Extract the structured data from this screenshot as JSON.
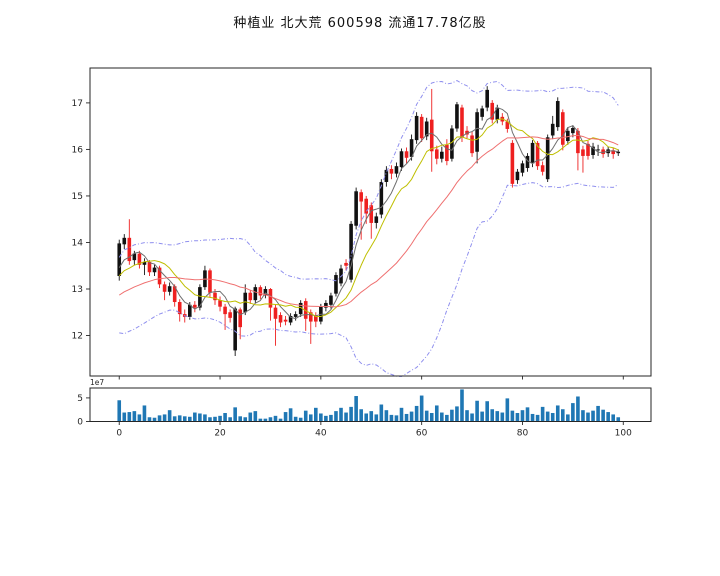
{
  "header": {
    "title": "种植业  北大荒  600598  流通17.78亿股"
  },
  "chart_data": [
    {
      "type": "candlestick",
      "panel": "price",
      "title": "种植业  北大荒  600598  流通17.78亿股",
      "xlabel": "",
      "ylabel": "",
      "xlim": [
        -5.8,
        105.5
      ],
      "ylim": [
        11.13,
        17.75
      ],
      "yticks": [
        12,
        13,
        14,
        15,
        16,
        17
      ],
      "xticks": [
        0,
        20,
        40,
        60,
        80,
        100
      ],
      "grid": false,
      "up_color": "#111111",
      "down_color": "#ee2020",
      "open": [
        13.28,
        13.96,
        14.1,
        13.62,
        13.76,
        13.52,
        13.58,
        13.36,
        13.46,
        13.1,
        12.94,
        13.06,
        12.72,
        12.46,
        12.4,
        12.66,
        12.6,
        13.04,
        13.4,
        12.92,
        12.76,
        12.62,
        12.5,
        11.68,
        12.56,
        12.5,
        12.92,
        12.76,
        13.04,
        12.86,
        13.0,
        12.6,
        12.44,
        12.34,
        12.28,
        12.4,
        12.46,
        12.74,
        12.5,
        12.44,
        12.3,
        12.6,
        12.66,
        12.9,
        13.12,
        13.56,
        13.2,
        14.36,
        15.08,
        14.94,
        14.8,
        14.42,
        14.6,
        15.3,
        15.58,
        15.48,
        15.62,
        15.96,
        15.84,
        16.2,
        16.7,
        16.28,
        16.64,
        16.0,
        15.8,
        16.1,
        15.8,
        16.45,
        16.9,
        16.4,
        16.3,
        15.95,
        16.7,
        16.9,
        17.0,
        16.64,
        16.7,
        16.6,
        16.14,
        15.34,
        15.5,
        15.6,
        15.7,
        16.14,
        15.66,
        15.36,
        16.3,
        16.48,
        16.8,
        16.18,
        16.35,
        16.4,
        16.0,
        16.12,
        15.88,
        15.98,
        16.0,
        15.92,
        15.98,
        15.92
      ],
      "high": [
        14.06,
        14.18,
        14.5,
        13.82,
        13.82,
        13.66,
        13.62,
        13.52,
        13.5,
        13.16,
        13.14,
        13.1,
        12.78,
        12.56,
        12.72,
        12.74,
        13.1,
        13.5,
        13.44,
        13.0,
        12.84,
        12.68,
        12.56,
        12.62,
        12.6,
        13.1,
        12.98,
        13.1,
        13.08,
        13.06,
        13.02,
        12.66,
        12.5,
        12.42,
        12.48,
        12.52,
        12.76,
        12.8,
        12.56,
        12.5,
        12.68,
        12.76,
        12.92,
        13.36,
        13.52,
        13.64,
        14.46,
        15.18,
        15.14,
        15.0,
        14.86,
        14.64,
        15.36,
        15.64,
        15.66,
        15.72,
        16.02,
        16.04,
        16.32,
        16.8,
        16.76,
        16.68,
        17.3,
        16.08,
        16.06,
        16.22,
        16.52,
        17.02,
        16.96,
        16.5,
        16.38,
        16.88,
        16.94,
        17.36,
        17.06,
        16.96,
        16.78,
        16.66,
        16.2,
        15.58,
        15.76,
        15.92,
        16.2,
        16.18,
        15.74,
        16.32,
        16.72,
        17.12,
        16.86,
        16.48,
        16.52,
        16.46,
        16.08,
        16.18,
        16.14,
        16.1,
        16.06,
        16.06,
        16.04,
        16.0
      ],
      "low": [
        13.18,
        13.86,
        13.52,
        13.52,
        13.44,
        13.3,
        13.28,
        13.28,
        13.02,
        12.76,
        12.86,
        12.62,
        12.3,
        12.28,
        12.34,
        12.5,
        12.54,
        12.98,
        12.82,
        12.66,
        12.52,
        12.12,
        12.28,
        11.56,
        11.92,
        12.44,
        12.68,
        12.7,
        12.78,
        12.8,
        12.32,
        11.78,
        12.18,
        12.22,
        12.22,
        12.32,
        12.4,
        12.1,
        11.82,
        12.18,
        12.24,
        12.52,
        12.58,
        12.84,
        13.06,
        13.4,
        13.14,
        14.28,
        14.06,
        14.4,
        14.08,
        14.3,
        14.52,
        15.2,
        15.36,
        15.4,
        15.54,
        15.7,
        15.76,
        16.12,
        16.16,
        16.2,
        15.52,
        15.68,
        15.72,
        15.66,
        15.74,
        16.38,
        16.16,
        16.24,
        15.84,
        15.7,
        16.62,
        16.82,
        16.56,
        16.56,
        16.52,
        16.36,
        15.18,
        15.26,
        15.42,
        15.52,
        15.62,
        15.56,
        15.44,
        15.3,
        16.22,
        16.4,
        15.98,
        16.1,
        16.26,
        15.55,
        15.5,
        15.78,
        15.8,
        15.86,
        15.82,
        15.84,
        15.8,
        15.86
      ],
      "close": [
        13.98,
        14.1,
        13.6,
        13.76,
        13.52,
        13.58,
        13.36,
        13.46,
        13.1,
        12.94,
        13.06,
        12.72,
        12.46,
        12.4,
        12.66,
        12.6,
        13.04,
        13.4,
        12.92,
        12.76,
        12.62,
        12.46,
        12.38,
        12.58,
        12.18,
        12.92,
        12.76,
        13.04,
        12.86,
        13.0,
        12.6,
        12.36,
        12.28,
        12.3,
        12.42,
        12.46,
        12.7,
        12.36,
        12.3,
        12.3,
        12.62,
        12.7,
        12.86,
        13.3,
        13.44,
        13.5,
        14.4,
        15.1,
        14.88,
        14.62,
        14.42,
        14.56,
        15.3,
        15.56,
        15.48,
        15.64,
        15.96,
        15.82,
        16.22,
        16.72,
        16.24,
        16.6,
        15.96,
        15.8,
        15.95,
        15.75,
        16.45,
        16.97,
        16.26,
        16.32,
        15.92,
        16.8,
        16.88,
        17.28,
        16.64,
        16.9,
        16.6,
        16.44,
        15.26,
        15.52,
        15.7,
        15.86,
        16.14,
        15.64,
        15.52,
        16.26,
        16.55,
        17.04,
        16.1,
        16.4,
        16.46,
        15.92,
        15.86,
        15.86,
        16.06,
        16.0,
        15.9,
        16.0,
        15.9,
        15.95
      ],
      "indicators": [
        {
          "name": "MA5",
          "type": "sma",
          "window": 5,
          "color": "#6e6e6e"
        },
        {
          "name": "MA10",
          "type": "sma",
          "window": 10,
          "color": "#bfbf00"
        },
        {
          "name": "MA26",
          "type": "sma",
          "window": 26,
          "color": "#ef7070"
        },
        {
          "name": "BOLL(26,2)",
          "type": "bollinger",
          "window": 26,
          "mult": 2,
          "color": "#8f8fee",
          "style": "dash-dot"
        }
      ]
    },
    {
      "type": "bar",
      "panel": "volume",
      "unit": "1e7",
      "offset_label": "1e7",
      "bar_color": "#1f77b4",
      "ylim": [
        0,
        7.1
      ],
      "yticks": [
        0,
        5
      ],
      "xticks": [
        0,
        20,
        40,
        60,
        80,
        100
      ],
      "values": [
        4.5,
        1.9,
        2.0,
        2.2,
        1.5,
        3.4,
        0.9,
        0.8,
        1.3,
        1.5,
        2.4,
        1.1,
        1.3,
        1.1,
        1.0,
        1.9,
        1.7,
        1.5,
        0.9,
        1.0,
        1.2,
        1.8,
        0.9,
        3.0,
        1.1,
        0.9,
        1.9,
        2.2,
        0.6,
        0.6,
        0.9,
        1.2,
        0.6,
        2.0,
        2.8,
        1.0,
        0.8,
        2.3,
        1.5,
        2.9,
        1.7,
        1.2,
        1.4,
        2.2,
        2.9,
        1.9,
        3.1,
        5.4,
        2.6,
        1.7,
        2.2,
        1.5,
        3.6,
        2.4,
        1.4,
        1.3,
        2.9,
        1.6,
        2.1,
        3.3,
        5.5,
        2.3,
        1.8,
        3.4,
        1.9,
        1.4,
        2.5,
        3.2,
        6.8,
        2.4,
        1.7,
        4.4,
        2.1,
        4.3,
        2.6,
        2.2,
        1.9,
        4.9,
        2.3,
        1.8,
        2.4,
        3.0,
        1.6,
        1.4,
        3.1,
        2.1,
        1.8,
        3.4,
        2.6,
        1.5,
        3.9,
        5.3,
        2.4,
        1.9,
        2.3,
        3.3,
        2.5,
        2.0,
        1.5,
        0.9
      ]
    }
  ]
}
